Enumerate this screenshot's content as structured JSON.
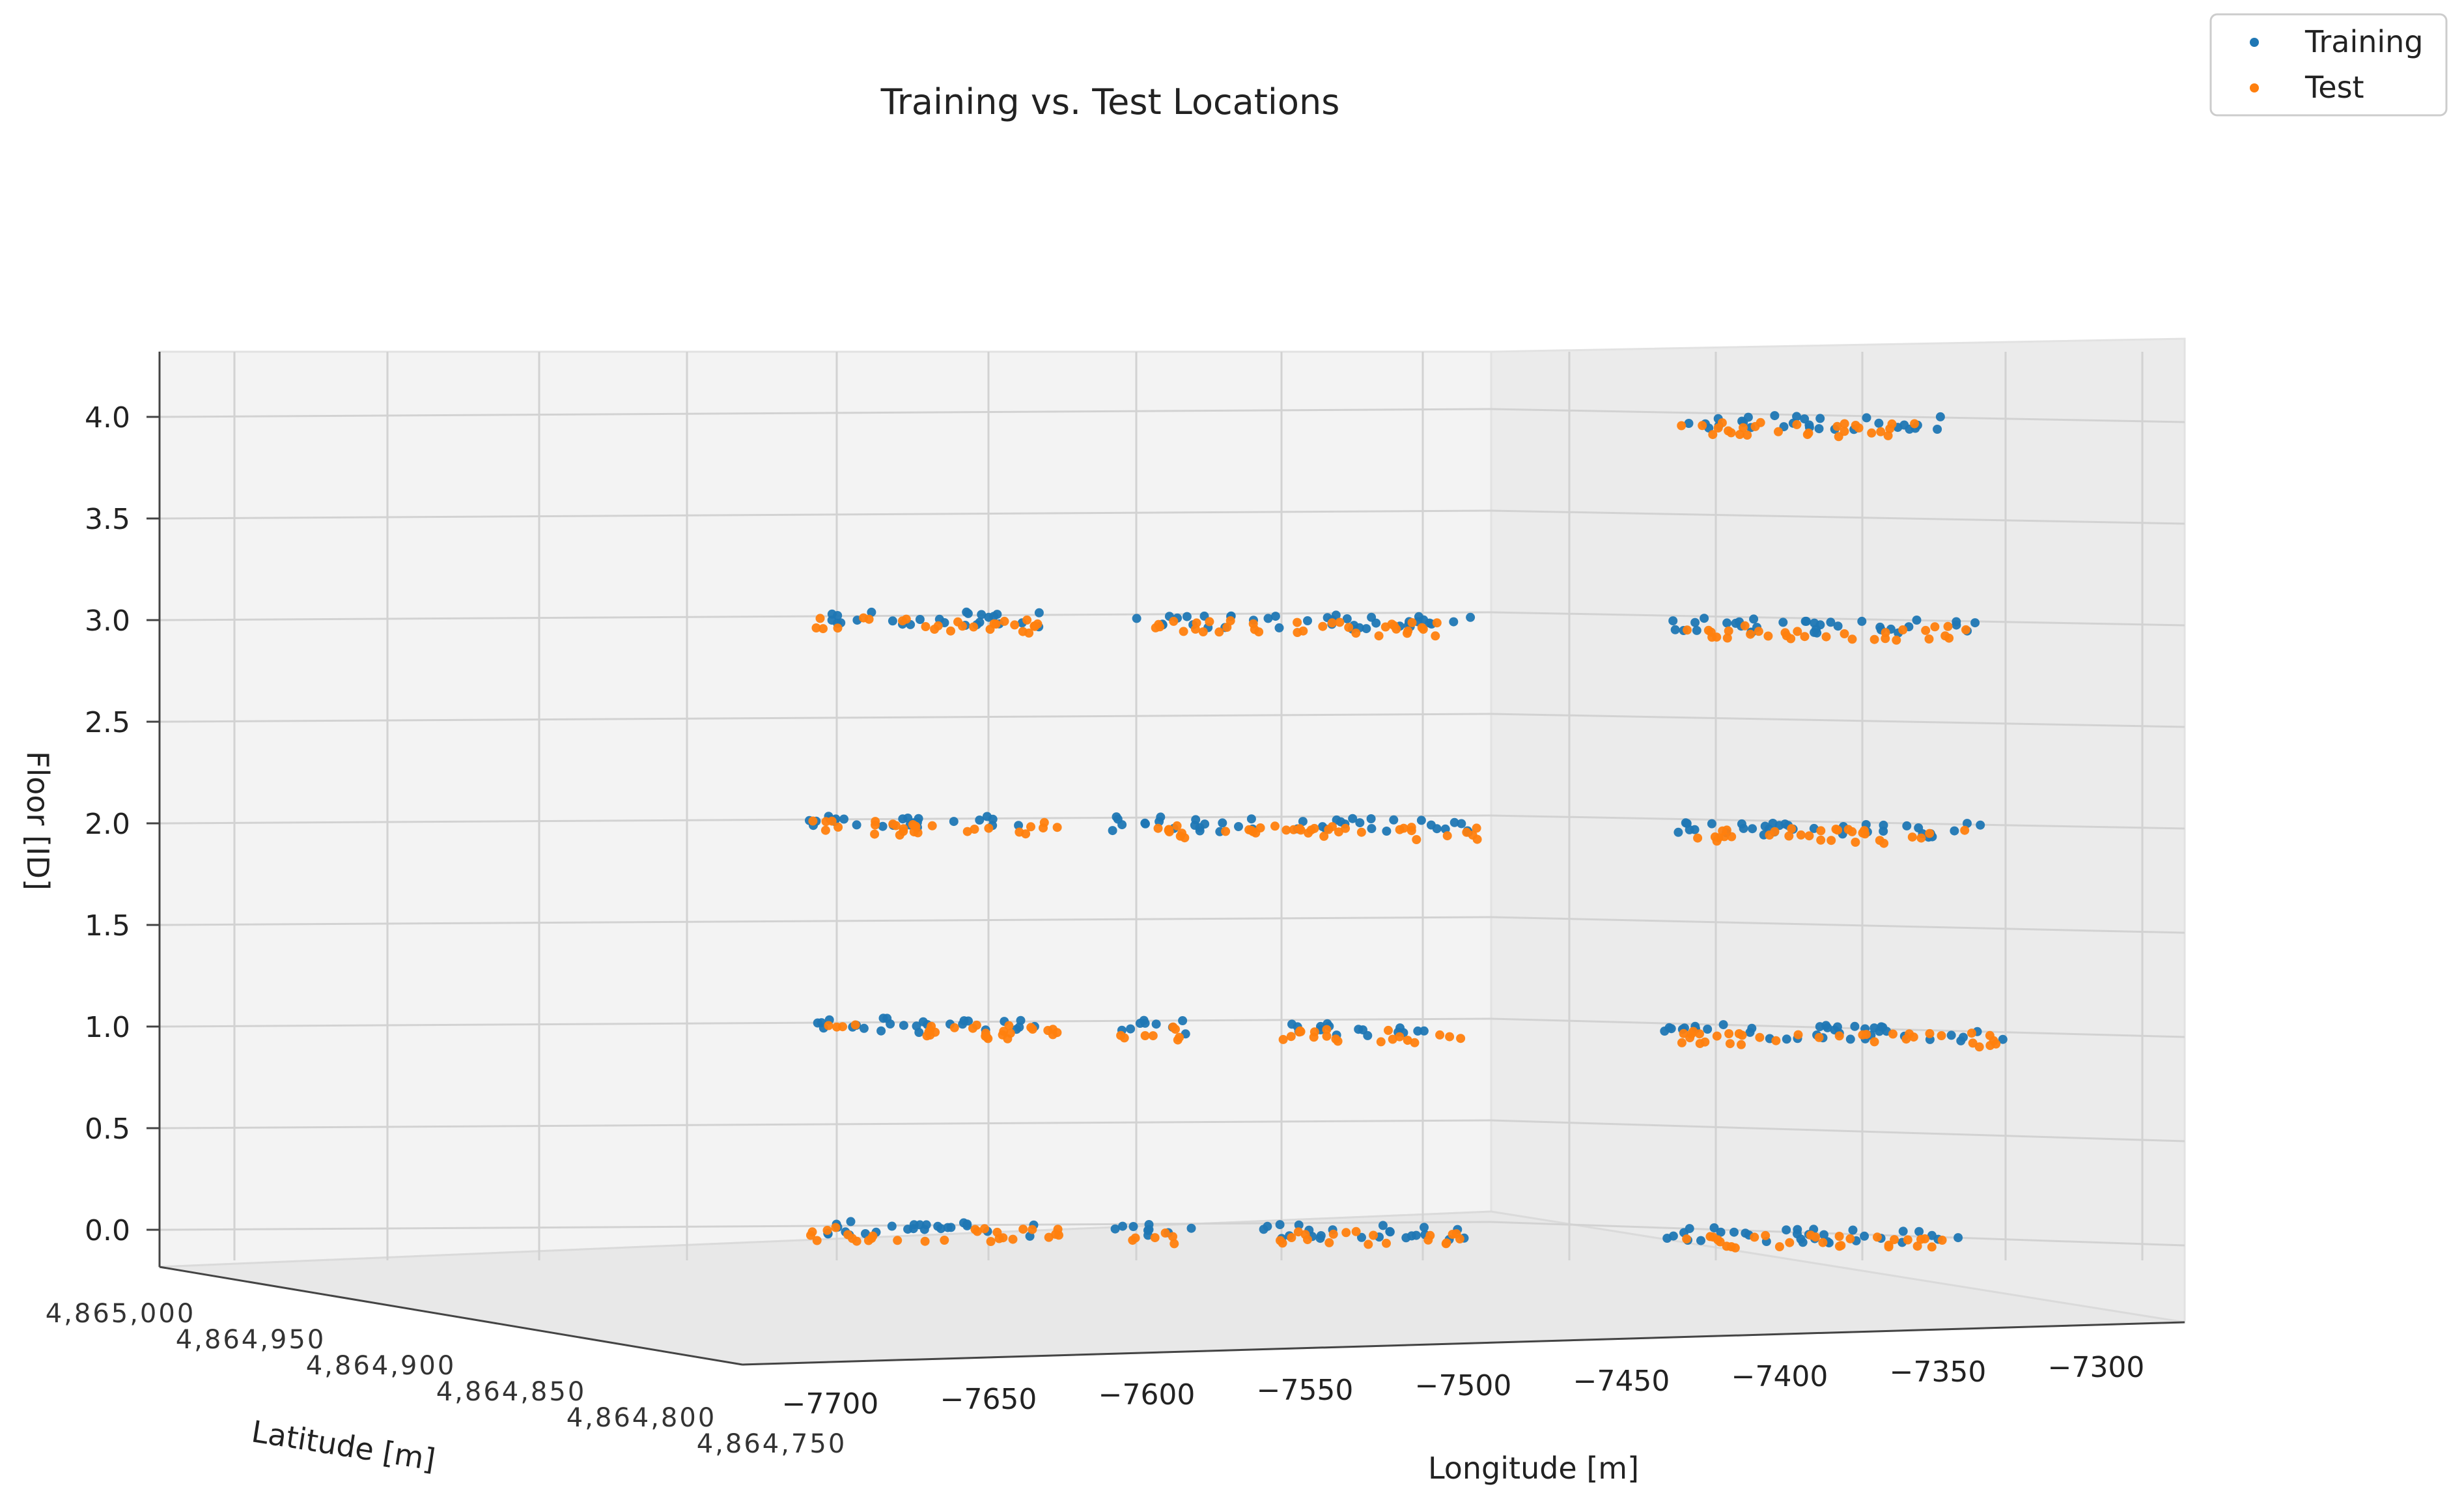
{
  "chart_data": {
    "type": "scatter",
    "title": "Training vs. Test Locations",
    "xlabel": "Longitude [m]",
    "ylabel": "Latitude [m]",
    "zlabel": "Floor [ID]",
    "x_ticks": [
      "−7700",
      "−7650",
      "−7600",
      "−7550",
      "−7500",
      "−7450",
      "−7400",
      "−7350",
      "−7300"
    ],
    "y_ticks": [
      "4,865,000",
      "4,864,950",
      "4,864,900",
      "4,864,850",
      "4,864,800",
      "4,864,750"
    ],
    "z_ticks": [
      "0.0",
      "0.5",
      "1.0",
      "1.5",
      "2.0",
      "2.5",
      "3.0",
      "3.5",
      "4.0"
    ],
    "xlim": [
      -7720,
      -7290
    ],
    "zlim": [
      -0.1,
      4.3
    ],
    "legend": {
      "placement": "top-right",
      "entries": [
        "Training",
        "Test"
      ]
    },
    "colors": {
      "Training": "#1f77b4",
      "Test": "#ff7f0e"
    },
    "series": [
      {
        "name": "Training",
        "clusters": [
          {
            "floor": 0,
            "x0": -7700,
            "x1": -7630
          },
          {
            "floor": 0,
            "x0": -7610,
            "x1": -7585
          },
          {
            "floor": 0,
            "x0": -7565,
            "x1": -7500
          },
          {
            "floor": 0,
            "x0": -7445,
            "x1": -7355
          },
          {
            "floor": 1,
            "x0": -7700,
            "x1": -7630
          },
          {
            "floor": 1,
            "x0": -7610,
            "x1": -7585
          },
          {
            "floor": 1,
            "x0": -7560,
            "x1": -7515
          },
          {
            "floor": 1,
            "x0": -7445,
            "x1": -7340
          },
          {
            "floor": 2,
            "x0": -7700,
            "x1": -7630
          },
          {
            "floor": 2,
            "x0": -7610,
            "x1": -7500
          },
          {
            "floor": 2,
            "x0": -7445,
            "x1": -7350
          },
          {
            "floor": 3,
            "x0": -7700,
            "x1": -7630
          },
          {
            "floor": 3,
            "x0": -7605,
            "x1": -7500
          },
          {
            "floor": 3,
            "x0": -7445,
            "x1": -7350
          },
          {
            "floor": 4,
            "x0": -7440,
            "x1": -7360
          }
        ]
      },
      {
        "name": "Test",
        "clusters": [
          {
            "floor": 0,
            "x0": -7700,
            "x1": -7625
          },
          {
            "floor": 0,
            "x0": -7605,
            "x1": -7590
          },
          {
            "floor": 0,
            "x0": -7560,
            "x1": -7505
          },
          {
            "floor": 0,
            "x0": -7440,
            "x1": -7360
          },
          {
            "floor": 1,
            "x0": -7700,
            "x1": -7625
          },
          {
            "floor": 1,
            "x0": -7608,
            "x1": -7585
          },
          {
            "floor": 1,
            "x0": -7560,
            "x1": -7505
          },
          {
            "floor": 1,
            "x0": -7440,
            "x1": -7345
          },
          {
            "floor": 2,
            "x0": -7700,
            "x1": -7625
          },
          {
            "floor": 2,
            "x0": -7605,
            "x1": -7500
          },
          {
            "floor": 2,
            "x0": -7440,
            "x1": -7355
          },
          {
            "floor": 3,
            "x0": -7700,
            "x1": -7630
          },
          {
            "floor": 3,
            "x0": -7600,
            "x1": -7505
          },
          {
            "floor": 3,
            "x0": -7440,
            "x1": -7355
          },
          {
            "floor": 4,
            "x0": -7440,
            "x1": -7365
          }
        ]
      }
    ]
  }
}
